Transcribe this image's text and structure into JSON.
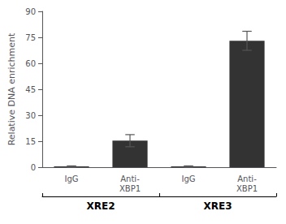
{
  "chart_data": {
    "type": "bar",
    "categories": [
      "IgG",
      "Anti-\nXBP1",
      "IgG",
      "Anti-\nXBP1"
    ],
    "values": [
      0.5,
      15.3,
      0.5,
      73.0
    ],
    "errors": [
      0.25,
      3.5,
      0.25,
      5.5
    ],
    "groups": [
      "XRE2",
      "XRE3"
    ],
    "color": "#333333",
    "ylabel": "Relative DNA enrichment",
    "ylim": [
      0,
      90
    ],
    "yticks": [
      0,
      15,
      30,
      45,
      60,
      75,
      90
    ],
    "grid": false
  }
}
